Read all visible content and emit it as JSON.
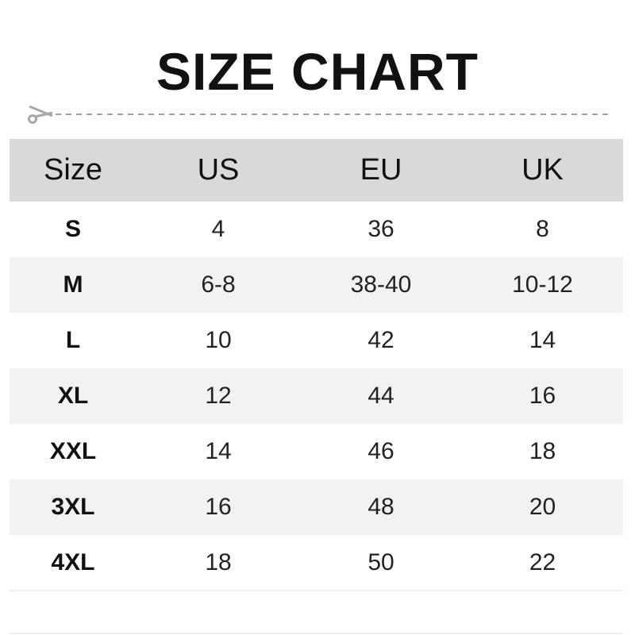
{
  "title": "SIZE CHART",
  "icons": {
    "cut": "scissors-icon"
  },
  "colors": {
    "header_bg": "#d9d9d9",
    "alt_row_bg": "#f2f2f2",
    "dash": "#a0a0a0"
  },
  "table": {
    "headers": [
      "Size",
      "US",
      "EU",
      "UK"
    ],
    "rows": [
      [
        "S",
        "4",
        "36",
        "8"
      ],
      [
        "M",
        "6-8",
        "38-40",
        "10-12"
      ],
      [
        "L",
        "10",
        "42",
        "14"
      ],
      [
        "XL",
        "12",
        "44",
        "16"
      ],
      [
        "XXL",
        "14",
        "46",
        "18"
      ],
      [
        "3XL",
        "16",
        "48",
        "20"
      ],
      [
        "4XL",
        "18",
        "50",
        "22"
      ]
    ]
  }
}
